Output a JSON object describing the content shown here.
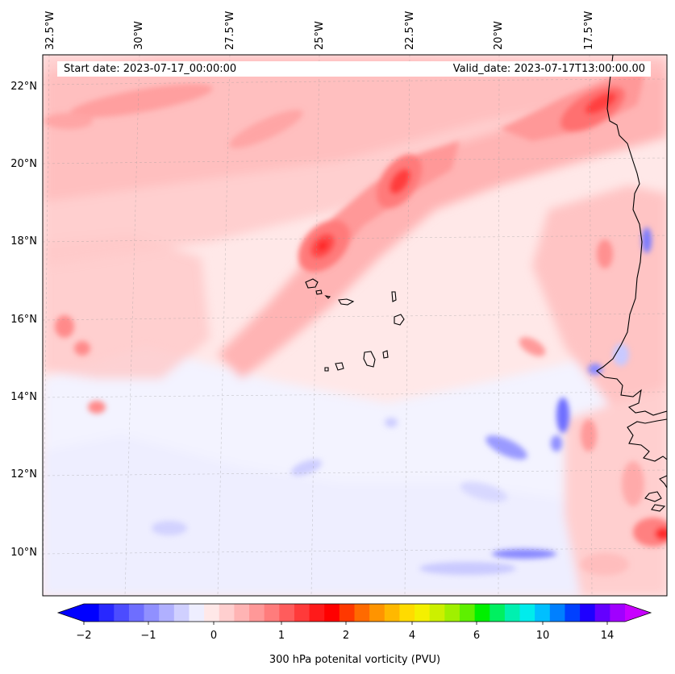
{
  "map": {
    "start_date_label": "Start date: 2023-07-17_00:00:00",
    "valid_date_label": "Valid_date: 2023-07-17T13:00:00.00",
    "longitude_labels": [
      "32.5°W",
      "30°W",
      "27.5°W",
      "25°W",
      "22.5°W",
      "20°W",
      "17.5°W"
    ],
    "latitude_labels": [
      "22°N",
      "20°N",
      "18°N",
      "16°N",
      "14°N",
      "12°N",
      "10°N"
    ],
    "extent": {
      "lon_min": -33.0,
      "lon_max": -15.6,
      "lat_min": 8.9,
      "lat_max": 22.8
    },
    "field": "300 hPa potential vorticity",
    "features": [
      "Cape Verde Islands",
      "West African coastline (Mauritania, Senegal, Guinea-Bissau)"
    ]
  },
  "colorbar": {
    "label": "300 hPa potenital vorticity (PVU)",
    "tick_labels": [
      "−2",
      "−1",
      "0",
      "1",
      "2",
      "4",
      "6",
      "10",
      "14"
    ],
    "colors": [
      "#0000ff",
      "#2828ff",
      "#4c4cff",
      "#6e6eff",
      "#9090ff",
      "#b0b0ff",
      "#d0d0ff",
      "#eeeeff",
      "#ffe8e8",
      "#ffcfcf",
      "#ffb4b4",
      "#ff9898",
      "#ff7c7c",
      "#ff5c5c",
      "#ff3a3a",
      "#ff1a1a",
      "#ff0000",
      "#ff3800",
      "#ff6a00",
      "#ff9400",
      "#ffb800",
      "#ffdb00",
      "#f4f000",
      "#ccf000",
      "#a0f000",
      "#5ef000",
      "#00f000",
      "#00f060",
      "#00f0b0",
      "#00ecec",
      "#00bfff",
      "#0080ff",
      "#0040ff",
      "#1e00ff",
      "#6400ff",
      "#a000ff"
    ],
    "extend_min_color": "#0000ff",
    "extend_max_color": "#c800ff"
  }
}
